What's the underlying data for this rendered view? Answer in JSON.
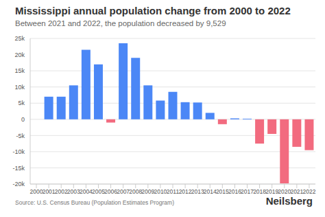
{
  "chart_data": {
    "type": "bar",
    "title": "Mississippi annual population change from 2000 to 2022",
    "subtitle": "Between 2021 and 2022, the population decreased by 9,529",
    "source": "Source: U.S. Census Bureau (Population Estimates Program)",
    "logo": "Neilsberg",
    "categories": [
      "2000",
      "2001",
      "2002",
      "2003",
      "2004",
      "2005",
      "2006",
      "2007",
      "2008",
      "2009",
      "2010",
      "2011",
      "2012",
      "2013",
      "2014",
      "2015",
      "2016",
      "2017",
      "2018",
      "2019",
      "2020",
      "2021",
      "2022"
    ],
    "values": [
      null,
      7000,
      7000,
      10500,
      21500,
      17000,
      -1000,
      23500,
      19000,
      10500,
      5800,
      8500,
      5300,
      5200,
      2000,
      -1500,
      300,
      200,
      -7500,
      -4500,
      -19800,
      -8500,
      -9529
    ],
    "colors": [
      "#4b87f6",
      "#4b87f6",
      "#4b87f6",
      "#4b87f6",
      "#4b87f6",
      "#4b87f6",
      "#f26b7f",
      "#4b87f6",
      "#4b87f6",
      "#4b87f6",
      "#4b87f6",
      "#4b87f6",
      "#4b87f6",
      "#4b87f6",
      "#4b87f6",
      "#f26b7f",
      "#4b87f6",
      "#4b87f6",
      "#f26b7f",
      "#f26b7f",
      "#f26b7f",
      "#f26b7f",
      "#f26b7f"
    ],
    "ylim": [
      -20000,
      25000
    ],
    "yticks": [
      {
        "value": -20000,
        "label": "-20k"
      },
      {
        "value": -15000,
        "label": "-15k"
      },
      {
        "value": -10000,
        "label": "-10k"
      },
      {
        "value": -5000,
        "label": "-5k"
      },
      0,
      {
        "value": 5000,
        "label": "5k"
      },
      {
        "value": 10000,
        "label": "10k"
      },
      {
        "value": 15000,
        "label": "15k"
      },
      {
        "value": 20000,
        "label": "20k"
      },
      {
        "value": 25000,
        "label": "25k"
      }
    ],
    "grid": true
  }
}
